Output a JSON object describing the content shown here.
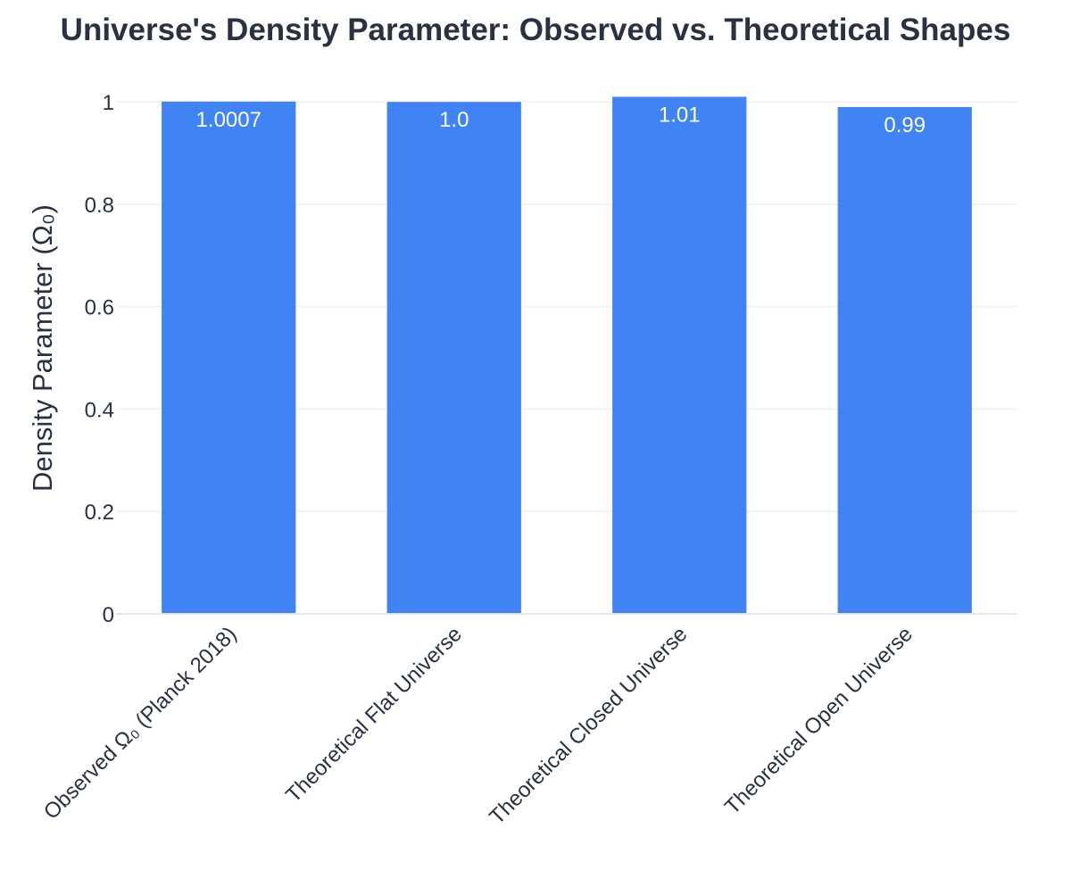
{
  "chart_data": {
    "type": "bar",
    "title": "Universe's Density Parameter: Observed vs. Theoretical Shapes",
    "xlabel": "",
    "ylabel": "Density Parameter (Ω₀)",
    "categories": [
      "Observed Ω₀ (Planck 2018)",
      "Theoretical Flat Universe",
      "Theoretical Closed Universe",
      "Theoretical Open Universe"
    ],
    "values": [
      1.0007,
      1.0,
      1.01,
      0.99
    ],
    "data_labels": [
      "1.0007",
      "1.0",
      "1.01",
      "0.99"
    ],
    "ylim": [
      0,
      1.03
    ],
    "yticks": [
      0,
      0.2,
      0.4,
      0.6,
      0.8,
      1
    ],
    "ytick_labels": [
      "0",
      "0.2",
      "0.4",
      "0.6",
      "0.8",
      "1"
    ],
    "grid": true,
    "legend": "none",
    "bar_color": "#3f83f4"
  }
}
